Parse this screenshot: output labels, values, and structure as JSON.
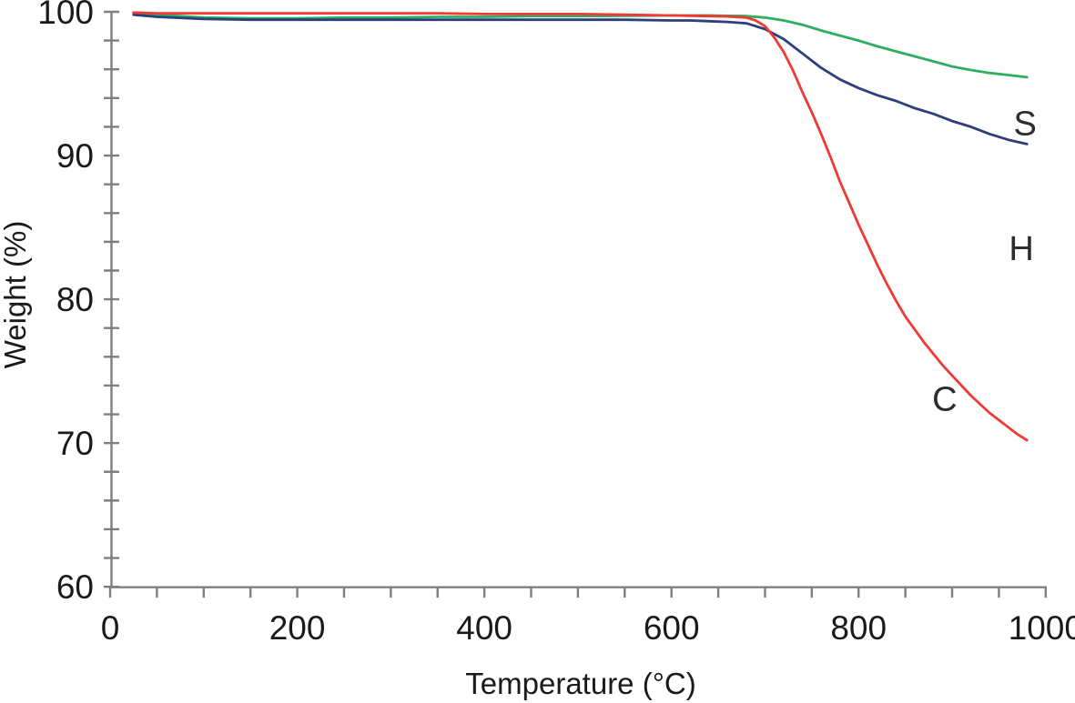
{
  "figure": {
    "background": "#ffffff",
    "axis_color": "#7f7f7f",
    "tick_label_color": "#1a1a1a",
    "curve_label_color": "#2d2d2d"
  },
  "chart_data": {
    "type": "line",
    "title": "",
    "xlabel": "Temperature (°C)",
    "ylabel": "Weight (%)",
    "xlim": [
      0,
      1000
    ],
    "ylim": [
      60,
      100
    ],
    "x_ticks_labeled": [
      0,
      200,
      400,
      600,
      800,
      1000
    ],
    "x_tick_minor_step": 50,
    "y_ticks_labeled": [
      60,
      70,
      80,
      90,
      100
    ],
    "y_tick_minor_step": 2,
    "grid": false,
    "legend": "inline curve letters S, H, C",
    "series": [
      {
        "name": "S",
        "color": "#2fae62",
        "label": {
          "text": "S",
          "x": 978,
          "y": 92.2
        },
        "points": [
          [
            25,
            99.9
          ],
          [
            50,
            99.8
          ],
          [
            100,
            99.6
          ],
          [
            150,
            99.55
          ],
          [
            200,
            99.55
          ],
          [
            250,
            99.6
          ],
          [
            300,
            99.6
          ],
          [
            350,
            99.65
          ],
          [
            400,
            99.65
          ],
          [
            450,
            99.7
          ],
          [
            500,
            99.7
          ],
          [
            550,
            99.72
          ],
          [
            600,
            99.75
          ],
          [
            640,
            99.75
          ],
          [
            680,
            99.7
          ],
          [
            700,
            99.6
          ],
          [
            720,
            99.4
          ],
          [
            740,
            99.1
          ],
          [
            760,
            98.7
          ],
          [
            780,
            98.35
          ],
          [
            800,
            98.0
          ],
          [
            820,
            97.6
          ],
          [
            840,
            97.25
          ],
          [
            860,
            96.9
          ],
          [
            880,
            96.55
          ],
          [
            900,
            96.2
          ],
          [
            920,
            95.95
          ],
          [
            940,
            95.75
          ],
          [
            960,
            95.6
          ],
          [
            980,
            95.45
          ]
        ]
      },
      {
        "name": "H",
        "color": "#2c3f7c",
        "label": {
          "text": "H",
          "x": 974,
          "y": 83.5
        },
        "points": [
          [
            25,
            99.8
          ],
          [
            50,
            99.65
          ],
          [
            100,
            99.5
          ],
          [
            150,
            99.45
          ],
          [
            200,
            99.45
          ],
          [
            250,
            99.45
          ],
          [
            300,
            99.45
          ],
          [
            350,
            99.45
          ],
          [
            400,
            99.45
          ],
          [
            450,
            99.45
          ],
          [
            500,
            99.45
          ],
          [
            550,
            99.45
          ],
          [
            600,
            99.4
          ],
          [
            620,
            99.4
          ],
          [
            640,
            99.35
          ],
          [
            660,
            99.3
          ],
          [
            680,
            99.2
          ],
          [
            700,
            98.8
          ],
          [
            720,
            98.1
          ],
          [
            740,
            97.1
          ],
          [
            760,
            96.1
          ],
          [
            780,
            95.3
          ],
          [
            800,
            94.7
          ],
          [
            820,
            94.2
          ],
          [
            840,
            93.8
          ],
          [
            860,
            93.3
          ],
          [
            880,
            92.9
          ],
          [
            900,
            92.4
          ],
          [
            920,
            92.0
          ],
          [
            940,
            91.5
          ],
          [
            960,
            91.1
          ],
          [
            980,
            90.8
          ]
        ]
      },
      {
        "name": "C",
        "color": "#ee3a32",
        "label": {
          "text": "C",
          "x": 892,
          "y": 73.0
        },
        "points": [
          [
            25,
            99.95
          ],
          [
            50,
            99.9
          ],
          [
            100,
            99.9
          ],
          [
            150,
            99.9
          ],
          [
            200,
            99.9
          ],
          [
            250,
            99.9
          ],
          [
            300,
            99.9
          ],
          [
            350,
            99.9
          ],
          [
            400,
            99.85
          ],
          [
            450,
            99.85
          ],
          [
            500,
            99.85
          ],
          [
            550,
            99.8
          ],
          [
            600,
            99.75
          ],
          [
            640,
            99.7
          ],
          [
            660,
            99.68
          ],
          [
            680,
            99.6
          ],
          [
            690,
            99.4
          ],
          [
            700,
            99.0
          ],
          [
            710,
            98.2
          ],
          [
            720,
            97.2
          ],
          [
            730,
            95.9
          ],
          [
            740,
            94.4
          ],
          [
            750,
            93.0
          ],
          [
            760,
            91.5
          ],
          [
            770,
            89.9
          ],
          [
            780,
            88.2
          ],
          [
            790,
            86.7
          ],
          [
            800,
            85.2
          ],
          [
            810,
            83.8
          ],
          [
            820,
            82.4
          ],
          [
            830,
            81.1
          ],
          [
            840,
            79.9
          ],
          [
            850,
            78.8
          ],
          [
            860,
            77.9
          ],
          [
            870,
            77.0
          ],
          [
            880,
            76.2
          ],
          [
            890,
            75.4
          ],
          [
            900,
            74.7
          ],
          [
            910,
            74.0
          ],
          [
            920,
            73.3
          ],
          [
            930,
            72.7
          ],
          [
            940,
            72.1
          ],
          [
            950,
            71.6
          ],
          [
            960,
            71.1
          ],
          [
            970,
            70.6
          ],
          [
            980,
            70.2
          ]
        ]
      }
    ]
  }
}
